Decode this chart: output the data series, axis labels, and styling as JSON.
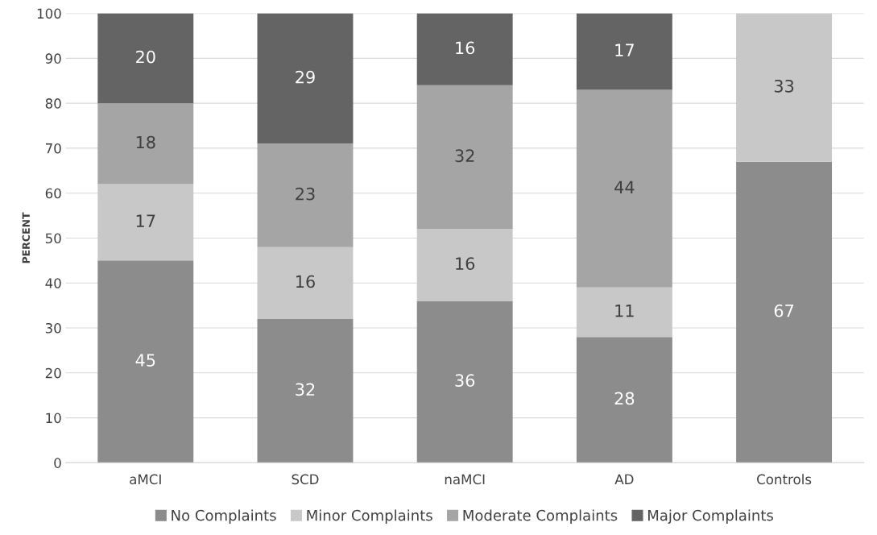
{
  "chart_data": {
    "type": "bar",
    "stacked": true,
    "ylabel": "PERCENT",
    "categories": [
      "aMCI",
      "SCD",
      "naMCI",
      "AD",
      "Controls"
    ],
    "series": [
      {
        "name": "No Complaints",
        "color": "#8c8c8c",
        "values": [
          45,
          32,
          36,
          28,
          67
        ]
      },
      {
        "name": "Minor Complaints",
        "color": "#c8c8c8",
        "values": [
          17,
          16,
          16,
          11,
          33
        ]
      },
      {
        "name": "Moderate Complaints",
        "color": "#a5a5a5",
        "values": [
          18,
          23,
          32,
          44,
          null
        ]
      },
      {
        "name": "Major Complaints",
        "color": "#646464",
        "values": [
          20,
          29,
          16,
          17,
          null
        ]
      }
    ],
    "ylim": [
      0,
      100
    ],
    "yticks": [
      0,
      10,
      20,
      30,
      40,
      50,
      60,
      70,
      80,
      90,
      100
    ],
    "grid": "y",
    "legend": "bottom",
    "data_labels": true
  }
}
